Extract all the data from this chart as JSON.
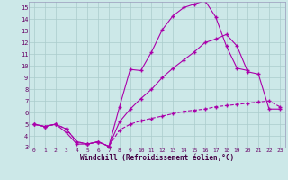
{
  "xlabel": "Windchill (Refroidissement éolien,°C)",
  "bg_color": "#cce8e8",
  "grid_color": "#aacccc",
  "line_color": "#aa00aa",
  "xlim": [
    -0.5,
    23.5
  ],
  "ylim": [
    3,
    15.5
  ],
  "xticks": [
    0,
    1,
    2,
    3,
    4,
    5,
    6,
    7,
    8,
    9,
    10,
    11,
    12,
    13,
    14,
    15,
    16,
    17,
    18,
    19,
    20,
    21,
    22,
    23
  ],
  "yticks": [
    3,
    4,
    5,
    6,
    7,
    8,
    9,
    10,
    11,
    12,
    13,
    14,
    15
  ],
  "line1_x": [
    0,
    1,
    2,
    3,
    4,
    5,
    6,
    7,
    8,
    9,
    10,
    11,
    12,
    13,
    14,
    15,
    16,
    17,
    18,
    19,
    20
  ],
  "line1_y": [
    5.0,
    4.8,
    5.0,
    4.3,
    3.3,
    3.3,
    3.5,
    3.1,
    6.5,
    9.7,
    9.6,
    11.2,
    13.1,
    14.3,
    15.0,
    15.3,
    15.6,
    14.2,
    11.7,
    9.8,
    9.6
  ],
  "line2_x": [
    0,
    1,
    2,
    3,
    4,
    5,
    6,
    7,
    8,
    9,
    10,
    11,
    12,
    13,
    14,
    15,
    16,
    17,
    18,
    19,
    20,
    21,
    22,
    23
  ],
  "line2_y": [
    5.0,
    4.8,
    5.0,
    4.6,
    3.5,
    3.3,
    3.5,
    3.1,
    5.2,
    6.3,
    7.2,
    8.0,
    9.0,
    9.8,
    10.5,
    11.2,
    12.0,
    12.3,
    12.7,
    11.7,
    9.5,
    9.3,
    6.3,
    6.3
  ],
  "line3_x": [
    0,
    1,
    2,
    3,
    4,
    5,
    6,
    7,
    8,
    9,
    10,
    11,
    12,
    13,
    14,
    15,
    16,
    17,
    18,
    19,
    20,
    21,
    22,
    23
  ],
  "line3_y": [
    5.0,
    4.8,
    5.0,
    4.6,
    3.5,
    3.3,
    3.5,
    3.1,
    4.5,
    5.0,
    5.3,
    5.5,
    5.7,
    5.9,
    6.1,
    6.2,
    6.3,
    6.5,
    6.6,
    6.7,
    6.8,
    6.9,
    7.0,
    6.5
  ]
}
